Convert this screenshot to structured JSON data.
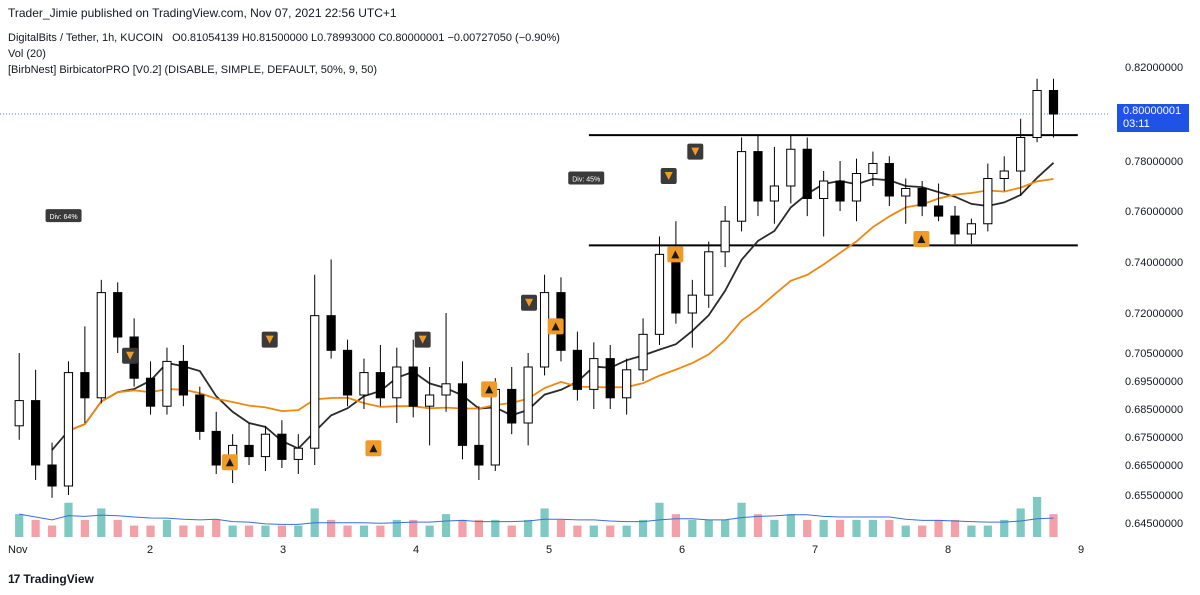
{
  "header": {
    "published_by": "Trader_Jimie published on TradingView.com, Nov 07, 2021 22:56 UTC+1"
  },
  "legend": {
    "symbol": "DigitalBits / Tether, 1h, KUCOIN",
    "open": "O0.81054139",
    "high": "H0.81500000",
    "low": "L0.78993000",
    "close": "C0.80000001",
    "change": "−0.00727050 (−0.90%)",
    "volume": "Vol (20)",
    "indicator": "[BirbNest] BirbicatorPRO [V0.2] (DISABLE, SIMPLE, DEFAULT, 50%, 9, 50)"
  },
  "price_badge": {
    "price": "0.80000001",
    "countdown": "03:11"
  },
  "footer": {
    "brand": "TradingView"
  },
  "colors": {
    "bull_candle": "#ffffff",
    "bear_candle": "#000000",
    "ma_slow": "#2a2a2a",
    "ma_fast": "#f0870f",
    "marker_fill": "#f09a28",
    "vol_up": "#7fc9c3",
    "vol_down": "#f3a0a8",
    "vol_ma": "#3b6fd8",
    "badge": "#1e53e5"
  },
  "chart_data": {
    "type": "candlestick",
    "x_ticks": [
      "Nov",
      "2",
      "3",
      "4",
      "5",
      "6",
      "7",
      "8",
      "9"
    ],
    "y_ticks": [
      "0.82000000",
      "0.78000000",
      "0.76000000",
      "0.74000000",
      "0.72000000",
      "0.70500000",
      "0.69500000",
      "0.68500000",
      "0.67500000",
      "0.66500000",
      "0.65500000",
      "0.64500000"
    ],
    "last_price": 0.80000001,
    "levels": [
      {
        "x": [
          4.3,
          7.6
        ],
        "y": 0.791
      },
      {
        "x": [
          4.3,
          7.6
        ],
        "y": 0.7465
      }
    ],
    "divergence_labels": [
      {
        "text": "Div: 64%",
        "x": 0.35,
        "y": 0.758
      },
      {
        "text": "Div: 45%",
        "x": 4.28,
        "y": 0.773
      }
    ],
    "sell_markers": [
      {
        "x": 0.85,
        "y": 0.704
      },
      {
        "x": 1.9,
        "y": 0.71
      },
      {
        "x": 3.05,
        "y": 0.71
      },
      {
        "x": 3.85,
        "y": 0.724
      },
      {
        "x": 4.9,
        "y": 0.774
      },
      {
        "x": 5.1,
        "y": 0.784
      }
    ],
    "buy_markers": [
      {
        "x": 1.6,
        "y": 0.666
      },
      {
        "x": 2.68,
        "y": 0.671
      },
      {
        "x": 3.55,
        "y": 0.692
      },
      {
        "x": 4.05,
        "y": 0.715
      },
      {
        "x": 4.95,
        "y": 0.743
      },
      {
        "x": 6.8,
        "y": 0.749
      }
    ],
    "ohlc_series": [
      [
        0.679,
        0.705,
        0.674,
        0.688
      ],
      [
        0.688,
        0.699,
        0.66,
        0.665
      ],
      [
        0.665,
        0.673,
        0.654,
        0.658
      ],
      [
        0.658,
        0.702,
        0.655,
        0.698
      ],
      [
        0.698,
        0.715,
        0.68,
        0.689
      ],
      [
        0.689,
        0.733,
        0.687,
        0.728
      ],
      [
        0.728,
        0.732,
        0.705,
        0.711
      ],
      [
        0.711,
        0.718,
        0.693,
        0.696
      ],
      [
        0.696,
        0.702,
        0.683,
        0.686
      ],
      [
        0.686,
        0.707,
        0.683,
        0.702
      ],
      [
        0.702,
        0.708,
        0.686,
        0.69
      ],
      [
        0.69,
        0.693,
        0.674,
        0.677
      ],
      [
        0.677,
        0.684,
        0.662,
        0.665
      ],
      [
        0.665,
        0.676,
        0.659,
        0.672
      ],
      [
        0.672,
        0.68,
        0.665,
        0.668
      ],
      [
        0.668,
        0.679,
        0.663,
        0.676
      ],
      [
        0.676,
        0.681,
        0.664,
        0.667
      ],
      [
        0.667,
        0.676,
        0.662,
        0.671
      ],
      [
        0.671,
        0.735,
        0.665,
        0.719
      ],
      [
        0.719,
        0.741,
        0.703,
        0.706
      ],
      [
        0.706,
        0.71,
        0.686,
        0.69
      ],
      [
        0.69,
        0.703,
        0.685,
        0.698
      ],
      [
        0.698,
        0.708,
        0.686,
        0.689
      ],
      [
        0.689,
        0.707,
        0.68,
        0.7
      ],
      [
        0.7,
        0.71,
        0.682,
        0.686
      ],
      [
        0.686,
        0.7,
        0.672,
        0.69
      ],
      [
        0.69,
        0.72,
        0.684,
        0.694
      ],
      [
        0.694,
        0.702,
        0.667,
        0.672
      ],
      [
        0.672,
        0.686,
        0.66,
        0.665
      ],
      [
        0.665,
        0.696,
        0.663,
        0.692
      ],
      [
        0.692,
        0.7,
        0.676,
        0.68
      ],
      [
        0.68,
        0.705,
        0.672,
        0.7
      ],
      [
        0.7,
        0.735,
        0.697,
        0.728
      ],
      [
        0.728,
        0.734,
        0.702,
        0.706
      ],
      [
        0.706,
        0.713,
        0.688,
        0.692
      ],
      [
        0.692,
        0.709,
        0.685,
        0.703
      ],
      [
        0.703,
        0.708,
        0.685,
        0.689
      ],
      [
        0.689,
        0.703,
        0.683,
        0.699
      ],
      [
        0.699,
        0.718,
        0.695,
        0.712
      ],
      [
        0.712,
        0.75,
        0.708,
        0.743
      ],
      [
        0.743,
        0.756,
        0.716,
        0.72
      ],
      [
        0.72,
        0.733,
        0.707,
        0.727
      ],
      [
        0.727,
        0.748,
        0.722,
        0.744
      ],
      [
        0.744,
        0.762,
        0.738,
        0.756
      ],
      [
        0.756,
        0.79,
        0.752,
        0.784
      ],
      [
        0.784,
        0.791,
        0.758,
        0.764
      ],
      [
        0.764,
        0.786,
        0.755,
        0.77
      ],
      [
        0.77,
        0.791,
        0.763,
        0.785
      ],
      [
        0.785,
        0.79,
        0.758,
        0.765
      ],
      [
        0.765,
        0.776,
        0.75,
        0.772
      ],
      [
        0.772,
        0.78,
        0.76,
        0.764
      ],
      [
        0.764,
        0.781,
        0.756,
        0.775
      ],
      [
        0.775,
        0.784,
        0.77,
        0.779
      ],
      [
        0.779,
        0.782,
        0.762,
        0.766
      ],
      [
        0.766,
        0.773,
        0.755,
        0.769
      ],
      [
        0.769,
        0.772,
        0.758,
        0.762
      ],
      [
        0.762,
        0.771,
        0.756,
        0.758
      ],
      [
        0.758,
        0.762,
        0.747,
        0.751
      ],
      [
        0.751,
        0.757,
        0.747,
        0.755
      ],
      [
        0.755,
        0.779,
        0.752,
        0.773
      ],
      [
        0.773,
        0.782,
        0.768,
        0.776
      ],
      [
        0.776,
        0.798,
        0.766,
        0.79
      ],
      [
        0.79,
        0.815,
        0.788,
        0.81
      ],
      [
        0.81,
        0.815,
        0.79,
        0.8
      ]
    ],
    "volume_series": [
      4,
      3,
      2,
      6,
      3,
      5,
      3,
      2,
      2,
      3,
      2,
      2,
      3,
      2,
      2,
      2,
      2,
      2,
      5,
      3,
      2,
      2,
      2,
      3,
      3,
      2,
      4,
      3,
      3,
      3,
      2,
      3,
      5,
      3,
      2,
      2,
      2,
      2,
      3,
      6,
      4,
      3,
      3,
      3,
      6,
      4,
      3,
      4,
      3,
      3,
      3,
      3,
      3,
      3,
      2,
      2,
      3,
      3,
      2,
      2,
      3,
      5,
      7,
      4
    ]
  }
}
